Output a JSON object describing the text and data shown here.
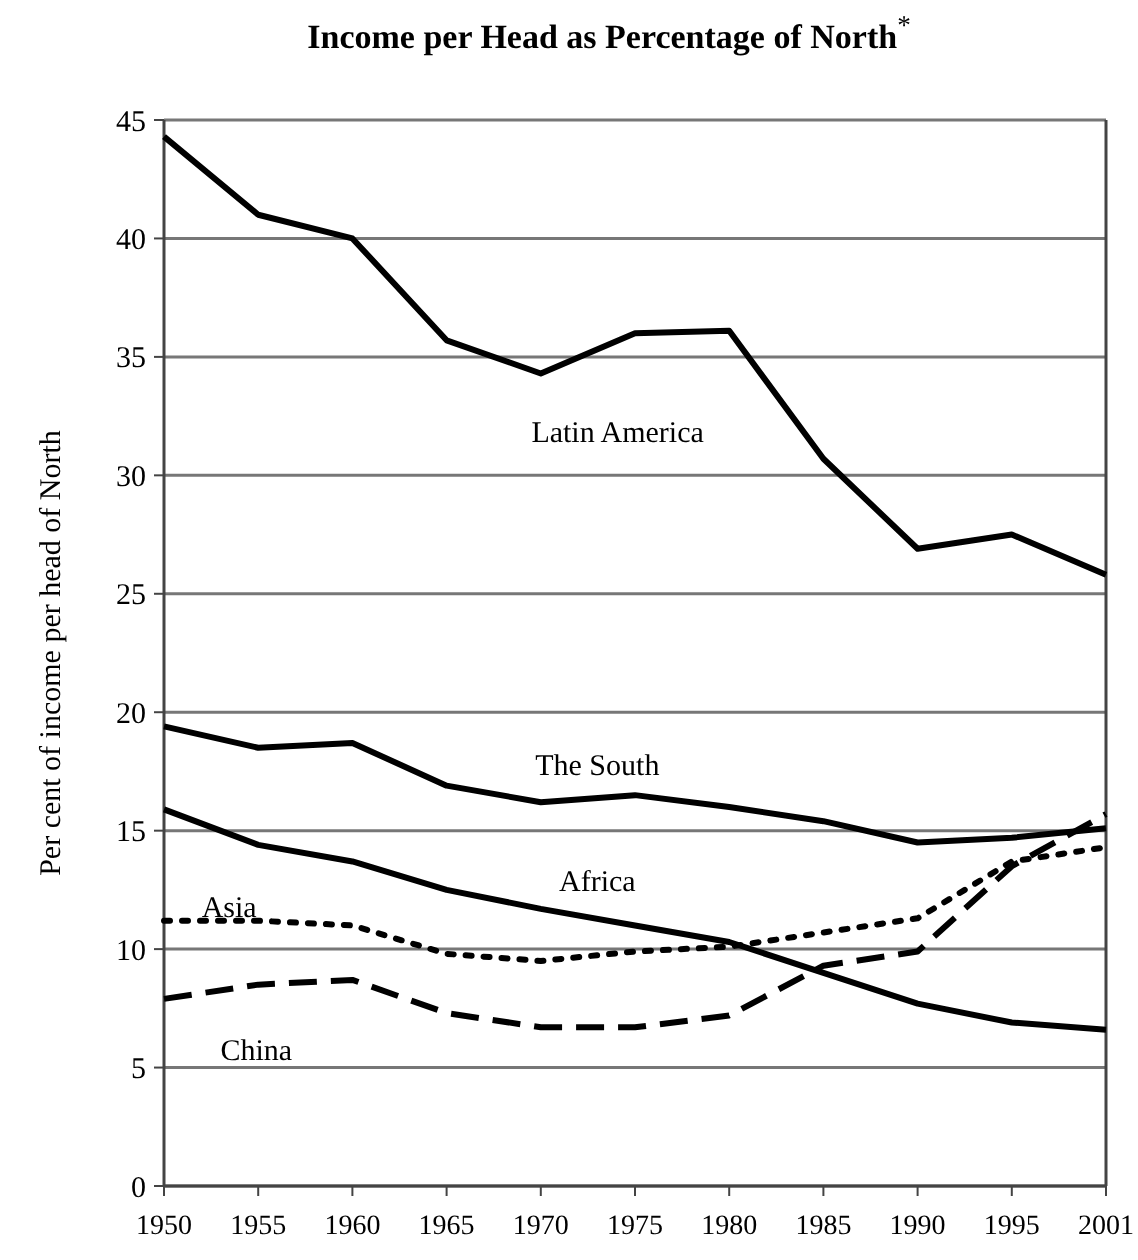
{
  "chart_data": {
    "type": "line",
    "title": "Income per Head as Percentage of North$^{*}$",
    "ylabel": "Per cent of income per head of North",
    "categories": [
      "1950",
      "1955",
      "1960",
      "1965",
      "1970",
      "1975",
      "1980",
      "1985",
      "1990",
      "1995",
      "2001"
    ],
    "ylim": [
      0,
      45
    ],
    "yticks": [
      0,
      5,
      10,
      15,
      20,
      25,
      30,
      35,
      40,
      45
    ],
    "grid": "y",
    "marker": "none",
    "series": [
      {
        "name": "Latin America",
        "color": "#000000",
        "line_style": "solid",
        "values": [
          44.3,
          41,
          40,
          35.7,
          34.3,
          36,
          36.1,
          30.7,
          26.9,
          27.5,
          25.8
        ]
      },
      {
        "name": "The South",
        "color": "#000000",
        "line_style": "solid",
        "values": [
          19.4,
          18.5,
          18.7,
          16.9,
          16.2,
          16.5,
          16,
          15.4,
          14.5,
          14.7,
          15.1
        ]
      },
      {
        "name": "Africa",
        "color": "#000000",
        "line_style": "solid",
        "values": [
          15.9,
          14.4,
          13.7,
          12.5,
          11.7,
          11,
          10.3,
          9,
          7.7,
          6.9,
          6.6
        ]
      },
      {
        "name": "Asia",
        "color": "#000000",
        "line_style": "dotted",
        "values": [
          11.2,
          11.2,
          11,
          9.8,
          9.5,
          9.9,
          10.1,
          10.7,
          11.3,
          13.7,
          14.3
        ]
      },
      {
        "name": "China",
        "color": "#000000",
        "line_style": "dashed",
        "values": [
          7.9,
          8.5,
          8.7,
          7.3,
          6.7,
          6.7,
          7.2,
          9.3,
          9.9,
          13.5,
          15.7
        ]
      }
    ]
  }
}
